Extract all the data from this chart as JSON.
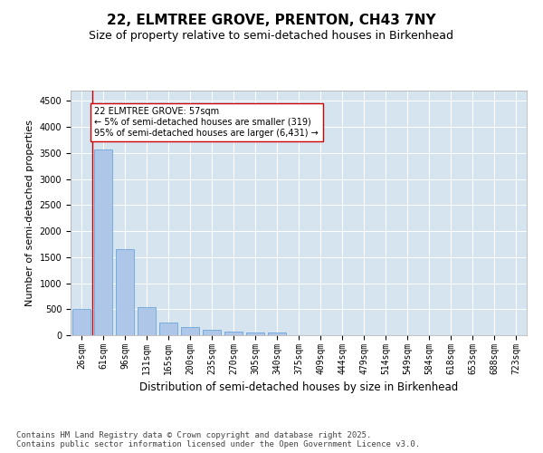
{
  "title": "22, ELMTREE GROVE, PRENTON, CH43 7NY",
  "subtitle": "Size of property relative to semi-detached houses in Birkenhead",
  "xlabel": "Distribution of semi-detached houses by size in Birkenhead",
  "ylabel": "Number of semi-detached properties",
  "categories": [
    "26sqm",
    "61sqm",
    "96sqm",
    "131sqm",
    "165sqm",
    "200sqm",
    "235sqm",
    "270sqm",
    "305sqm",
    "340sqm",
    "375sqm",
    "409sqm",
    "444sqm",
    "479sqm",
    "514sqm",
    "549sqm",
    "584sqm",
    "618sqm",
    "653sqm",
    "688sqm",
    "723sqm"
  ],
  "values": [
    500,
    3570,
    1650,
    540,
    245,
    160,
    105,
    65,
    45,
    45,
    0,
    0,
    0,
    0,
    0,
    0,
    0,
    0,
    0,
    0,
    0
  ],
  "bar_color": "#aec6e8",
  "bar_edge_color": "#5b9bd5",
  "vline_color": "#cc0000",
  "vline_x_index": 0.5,
  "annotation_text": "22 ELMTREE GROVE: 57sqm\n← 5% of semi-detached houses are smaller (319)\n95% of semi-detached houses are larger (6,431) →",
  "annotation_box_color": "#ffffff",
  "annotation_box_edge_color": "#cc0000",
  "ylim": [
    0,
    4700
  ],
  "yticks": [
    0,
    500,
    1000,
    1500,
    2000,
    2500,
    3000,
    3500,
    4000,
    4500
  ],
  "footer": "Contains HM Land Registry data © Crown copyright and database right 2025.\nContains public sector information licensed under the Open Government Licence v3.0.",
  "bg_color": "#ffffff",
  "plot_bg_color": "#d6e4f0",
  "title_fontsize": 11,
  "subtitle_fontsize": 9,
  "footer_fontsize": 6.5,
  "tick_fontsize": 7,
  "ylabel_fontsize": 8,
  "xlabel_fontsize": 8.5,
  "annotation_fontsize": 7
}
